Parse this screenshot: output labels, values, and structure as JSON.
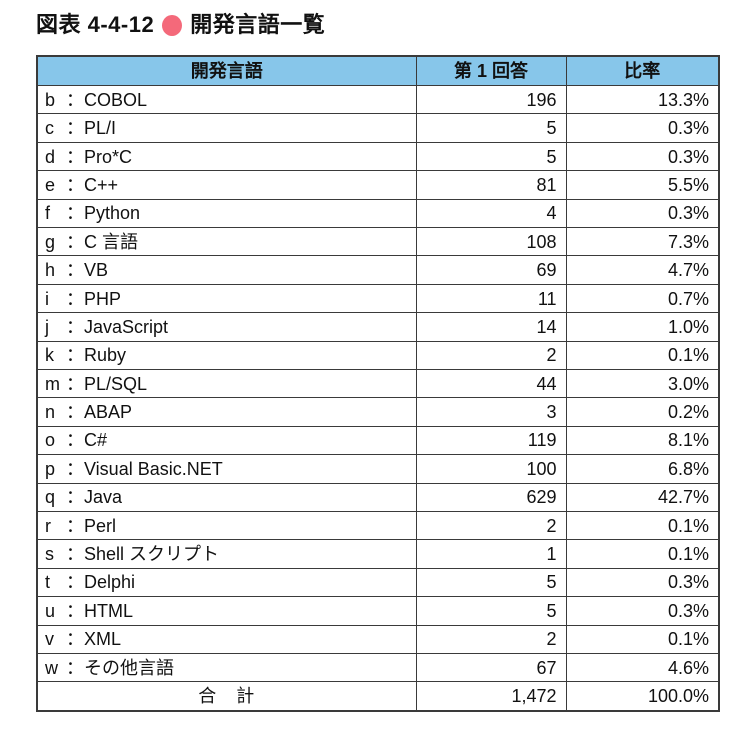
{
  "title": {
    "prefix": "図表 4-4-12",
    "bullet_icon": "circle",
    "text": "開発言語一覧"
  },
  "colors": {
    "header_bg": "#87c6ea",
    "bullet": "#f4697a",
    "border": "#3a3a3a",
    "text": "#111111"
  },
  "table": {
    "colon": "：",
    "headers": [
      "開発言語",
      "第 1 回答",
      "比率"
    ],
    "rows": [
      {
        "key": "b",
        "name": "COBOL",
        "answers": "196",
        "ratio": "13.3%"
      },
      {
        "key": "c",
        "name": "PL/I",
        "answers": "5",
        "ratio": "0.3%"
      },
      {
        "key": "d",
        "name": "Pro*C",
        "answers": "5",
        "ratio": "0.3%"
      },
      {
        "key": "e",
        "name": "C++",
        "answers": "81",
        "ratio": "5.5%"
      },
      {
        "key": "f",
        "name": "Python",
        "answers": "4",
        "ratio": "0.3%"
      },
      {
        "key": "g",
        "name": "C 言語",
        "answers": "108",
        "ratio": "7.3%"
      },
      {
        "key": "h",
        "name": "VB",
        "answers": "69",
        "ratio": "4.7%"
      },
      {
        "key": "i",
        "name": "PHP",
        "answers": "11",
        "ratio": "0.7%"
      },
      {
        "key": "j",
        "name": "JavaScript",
        "answers": "14",
        "ratio": "1.0%"
      },
      {
        "key": "k",
        "name": "Ruby",
        "answers": "2",
        "ratio": "0.1%"
      },
      {
        "key": "m",
        "name": "PL/SQL",
        "answers": "44",
        "ratio": "3.0%"
      },
      {
        "key": "n",
        "name": "ABAP",
        "answers": "3",
        "ratio": "0.2%"
      },
      {
        "key": "o",
        "name": "C#",
        "answers": "119",
        "ratio": "8.1%"
      },
      {
        "key": "p",
        "name": "Visual Basic.NET",
        "answers": "100",
        "ratio": "6.8%"
      },
      {
        "key": "q",
        "name": "Java",
        "answers": "629",
        "ratio": "42.7%"
      },
      {
        "key": "r",
        "name": "Perl",
        "answers": "2",
        "ratio": "0.1%"
      },
      {
        "key": "s",
        "name": "Shell スクリプト",
        "answers": "1",
        "ratio": "0.1%"
      },
      {
        "key": "t",
        "name": "Delphi",
        "answers": "5",
        "ratio": "0.3%"
      },
      {
        "key": "u",
        "name": "HTML",
        "answers": "5",
        "ratio": "0.3%"
      },
      {
        "key": "v",
        "name": "XML",
        "answers": "2",
        "ratio": "0.1%"
      },
      {
        "key": "w",
        "name": "その他言語",
        "answers": "67",
        "ratio": "4.6%"
      }
    ],
    "total": {
      "label": "合　計",
      "answers": "1,472",
      "ratio": "100.0%"
    }
  }
}
